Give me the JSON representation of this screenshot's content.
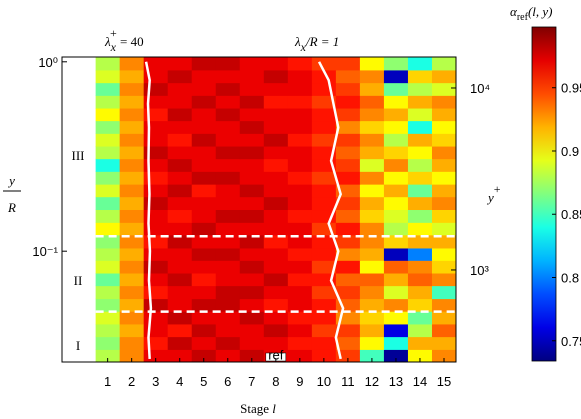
{
  "chart_data": {
    "type": "heatmap",
    "annotations": [
      {
        "parts": [
          "λ",
          "x",
          "+",
          " = 40"
        ]
      },
      {
        "parts": [
          "λ",
          "x",
          "/R = 1"
        ]
      }
    ],
    "xlabel": [
      "Stage ",
      "l"
    ],
    "ylabel": [
      "y",
      "R"
    ],
    "y2label": [
      "y",
      "+"
    ],
    "colorbar_label": [
      "α",
      "ref",
      "(l, y)"
    ],
    "regions": [
      "III",
      "II",
      "I"
    ],
    "ref_label": "ref",
    "categories": [
      1,
      2,
      3,
      4,
      5,
      6,
      7,
      8,
      9,
      10,
      11,
      12,
      13,
      14,
      15
    ],
    "xlim": [
      -0.9,
      15.5
    ],
    "xticks": [
      1,
      2,
      3,
      4,
      5,
      6,
      7,
      8,
      9,
      10,
      11,
      12,
      13,
      14,
      15
    ],
    "log_y": true,
    "ylim": [
      0.026,
      1.06
    ],
    "yticks": [
      {
        "value": 1,
        "label": "10⁰"
      },
      {
        "value": 0.1,
        "label": "10⁻¹"
      }
    ],
    "y2lim": [
      312,
      14800
    ],
    "y2ticks": [
      {
        "value": 10000,
        "label": "10⁴"
      },
      {
        "value": 1000,
        "label": "10³"
      }
    ],
    "clim": [
      0.734,
      0.998
    ],
    "cticks": [
      0.75,
      0.8,
      0.85,
      0.9,
      0.95
    ],
    "colormap": "jet",
    "ybins": [
      0.026,
      0.0303,
      0.0354,
      0.0413,
      0.0482,
      0.0562,
      0.0658,
      0.0767,
      0.0895,
      0.104,
      0.122,
      0.142,
      0.166,
      0.194,
      0.226,
      0.264,
      0.308,
      0.359,
      0.419,
      0.489,
      0.57,
      0.665,
      0.776,
      0.906,
      1.06
    ],
    "z": [
      [
        0.88,
        0.93,
        0.97,
        0.97,
        0.98,
        0.97,
        0.98,
        0.97,
        0.97,
        0.96,
        0.95,
        0.85,
        0.74,
        0.9,
        0.93
      ],
      [
        0.87,
        0.93,
        0.96,
        0.98,
        0.97,
        0.98,
        0.97,
        0.97,
        0.96,
        0.96,
        0.94,
        0.9,
        0.84,
        0.92,
        0.92
      ],
      [
        0.88,
        0.92,
        0.97,
        0.96,
        0.98,
        0.97,
        0.97,
        0.98,
        0.97,
        0.95,
        0.95,
        0.92,
        0.76,
        0.88,
        0.94
      ],
      [
        0.89,
        0.93,
        0.97,
        0.98,
        0.97,
        0.97,
        0.98,
        0.97,
        0.96,
        0.96,
        0.93,
        0.91,
        0.9,
        0.86,
        0.92
      ],
      [
        0.87,
        0.92,
        0.98,
        0.97,
        0.98,
        0.98,
        0.97,
        0.96,
        0.97,
        0.96,
        0.94,
        0.92,
        0.93,
        0.91,
        0.93
      ],
      [
        0.88,
        0.93,
        0.96,
        0.97,
        0.97,
        0.98,
        0.98,
        0.97,
        0.97,
        0.95,
        0.95,
        0.93,
        0.89,
        0.92,
        0.85
      ],
      [
        0.86,
        0.92,
        0.97,
        0.98,
        0.96,
        0.97,
        0.97,
        0.98,
        0.96,
        0.96,
        0.94,
        0.94,
        0.92,
        0.94,
        0.93
      ],
      [
        0.89,
        0.93,
        0.98,
        0.97,
        0.97,
        0.97,
        0.98,
        0.97,
        0.97,
        0.95,
        0.96,
        0.9,
        0.94,
        0.93,
        0.91
      ],
      [
        0.88,
        0.92,
        0.97,
        0.97,
        0.98,
        0.98,
        0.97,
        0.97,
        0.96,
        0.96,
        0.93,
        0.92,
        0.75,
        0.8,
        0.9
      ],
      [
        0.87,
        0.93,
        0.96,
        0.98,
        0.97,
        0.97,
        0.98,
        0.96,
        0.97,
        0.96,
        0.95,
        0.93,
        0.91,
        0.92,
        0.92
      ],
      [
        0.9,
        0.92,
        0.97,
        0.97,
        0.98,
        0.97,
        0.97,
        0.97,
        0.97,
        0.95,
        0.96,
        0.93,
        0.88,
        0.9,
        0.89
      ],
      [
        0.88,
        0.93,
        0.97,
        0.96,
        0.97,
        0.98,
        0.98,
        0.97,
        0.96,
        0.96,
        0.94,
        0.91,
        0.89,
        0.87,
        0.91
      ],
      [
        0.86,
        0.92,
        0.98,
        0.97,
        0.97,
        0.97,
        0.97,
        0.98,
        0.97,
        0.96,
        0.95,
        0.92,
        0.9,
        0.92,
        0.93
      ],
      [
        0.89,
        0.93,
        0.97,
        0.98,
        0.96,
        0.97,
        0.98,
        0.97,
        0.97,
        0.96,
        0.94,
        0.9,
        0.92,
        0.86,
        0.92
      ],
      [
        0.87,
        0.92,
        0.96,
        0.97,
        0.98,
        0.98,
        0.97,
        0.97,
        0.96,
        0.95,
        0.96,
        0.93,
        0.9,
        0.91,
        0.9
      ],
      [
        0.84,
        0.93,
        0.97,
        0.98,
        0.97,
        0.97,
        0.97,
        0.96,
        0.97,
        0.96,
        0.95,
        0.89,
        0.93,
        0.88,
        0.92
      ],
      [
        0.88,
        0.92,
        0.98,
        0.97,
        0.97,
        0.98,
        0.98,
        0.97,
        0.97,
        0.96,
        0.94,
        0.92,
        0.91,
        0.9,
        0.93
      ],
      [
        0.89,
        0.93,
        0.97,
        0.96,
        0.98,
        0.97,
        0.97,
        0.98,
        0.96,
        0.95,
        0.95,
        0.93,
        0.88,
        0.92,
        0.91
      ],
      [
        0.87,
        0.92,
        0.97,
        0.97,
        0.97,
        0.97,
        0.98,
        0.97,
        0.97,
        0.96,
        0.93,
        0.91,
        0.9,
        0.84,
        0.9
      ],
      [
        0.9,
        0.93,
        0.96,
        0.98,
        0.97,
        0.98,
        0.97,
        0.97,
        0.97,
        0.96,
        0.95,
        0.93,
        0.92,
        0.89,
        0.92
      ],
      [
        0.88,
        0.92,
        0.97,
        0.97,
        0.98,
        0.97,
        0.98,
        0.96,
        0.96,
        0.95,
        0.96,
        0.94,
        0.9,
        0.92,
        0.93
      ],
      [
        0.86,
        0.93,
        0.98,
        0.97,
        0.97,
        0.98,
        0.97,
        0.97,
        0.97,
        0.96,
        0.95,
        0.92,
        0.86,
        0.88,
        0.89
      ],
      [
        0.89,
        0.92,
        0.97,
        0.98,
        0.97,
        0.97,
        0.97,
        0.98,
        0.97,
        0.96,
        0.94,
        0.93,
        0.75,
        0.91,
        0.92
      ],
      [
        0.88,
        0.93,
        0.97,
        0.97,
        0.98,
        0.98,
        0.97,
        0.97,
        0.96,
        0.95,
        0.95,
        0.9,
        0.87,
        0.84,
        0.88
      ]
    ],
    "lines": [
      {
        "color": "#ffffff",
        "x": [
          2.75,
          2.7,
          2.8,
          2.72,
          2.76,
          2.7,
          2.74,
          2.7,
          2.72,
          2.68,
          2.75,
          2.6
        ],
        "y": [
          0.027,
          0.035,
          0.05,
          0.07,
          0.1,
          0.14,
          0.2,
          0.3,
          0.45,
          0.6,
          0.8,
          1.0
        ]
      },
      {
        "color": "#ffffff",
        "x": [
          10.7,
          10.5,
          10.8,
          10.3,
          10.6,
          10.2,
          10.7,
          10.3,
          10.6,
          10.4,
          10.2,
          9.8
        ],
        "y": [
          0.027,
          0.035,
          0.05,
          0.07,
          0.1,
          0.14,
          0.2,
          0.3,
          0.45,
          0.6,
          0.8,
          1.0
        ]
      }
    ],
    "hlines": [
      {
        "value": 0.12,
        "color": "#ffffff"
      },
      {
        "value": 0.048,
        "color": "#ffffff"
      }
    ]
  }
}
